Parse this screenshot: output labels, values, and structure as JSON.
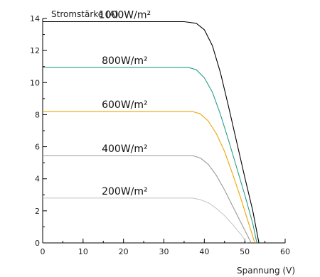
{
  "chart_data": {
    "type": "line",
    "xlabel": "Spannung (V)",
    "ylabel": "Stromstärke (A)",
    "xlim": [
      0,
      60
    ],
    "ylim": [
      0,
      14
    ],
    "x_ticks": [
      0,
      10,
      20,
      30,
      40,
      50,
      60
    ],
    "y_ticks": [
      0,
      2,
      4,
      6,
      8,
      10,
      12,
      14
    ],
    "grid": false,
    "series": [
      {
        "name": "1000W/m²",
        "color": "#000000",
        "points": [
          [
            0,
            13.8
          ],
          [
            35,
            13.8
          ],
          [
            38,
            13.7
          ],
          [
            40,
            13.3
          ],
          [
            42,
            12.3
          ],
          [
            44,
            10.6
          ],
          [
            46,
            8.5
          ],
          [
            48,
            6.3
          ],
          [
            50,
            4.1
          ],
          [
            52,
            2.0
          ],
          [
            53.5,
            0
          ]
        ]
      },
      {
        "name": "800W/m²",
        "color": "#2a9d8f",
        "points": [
          [
            0,
            10.95
          ],
          [
            36,
            10.95
          ],
          [
            38,
            10.8
          ],
          [
            40,
            10.3
          ],
          [
            42,
            9.4
          ],
          [
            44,
            8.0
          ],
          [
            46,
            6.4
          ],
          [
            48,
            4.7
          ],
          [
            50,
            3.0
          ],
          [
            52,
            1.2
          ],
          [
            53,
            0
          ]
        ]
      },
      {
        "name": "600W/m²",
        "color": "#f0a500",
        "points": [
          [
            0,
            8.2
          ],
          [
            37,
            8.2
          ],
          [
            39,
            8.05
          ],
          [
            41,
            7.6
          ],
          [
            43,
            6.8
          ],
          [
            45,
            5.7
          ],
          [
            47,
            4.3
          ],
          [
            49,
            2.8
          ],
          [
            51,
            1.2
          ],
          [
            52.5,
            0
          ]
        ]
      },
      {
        "name": "400W/m²",
        "color": "#999999",
        "points": [
          [
            0,
            5.45
          ],
          [
            37,
            5.45
          ],
          [
            39,
            5.3
          ],
          [
            41,
            4.9
          ],
          [
            43,
            4.2
          ],
          [
            45,
            3.3
          ],
          [
            47,
            2.3
          ],
          [
            49,
            1.3
          ],
          [
            50.8,
            0.4
          ],
          [
            51.6,
            0
          ]
        ]
      },
      {
        "name": "200W/m²",
        "color": "#c8c8c8",
        "points": [
          [
            0,
            2.8
          ],
          [
            37,
            2.8
          ],
          [
            39,
            2.7
          ],
          [
            41,
            2.5
          ],
          [
            43,
            2.15
          ],
          [
            45,
            1.7
          ],
          [
            47,
            1.15
          ],
          [
            49,
            0.55
          ],
          [
            50.5,
            0
          ]
        ]
      }
    ]
  }
}
